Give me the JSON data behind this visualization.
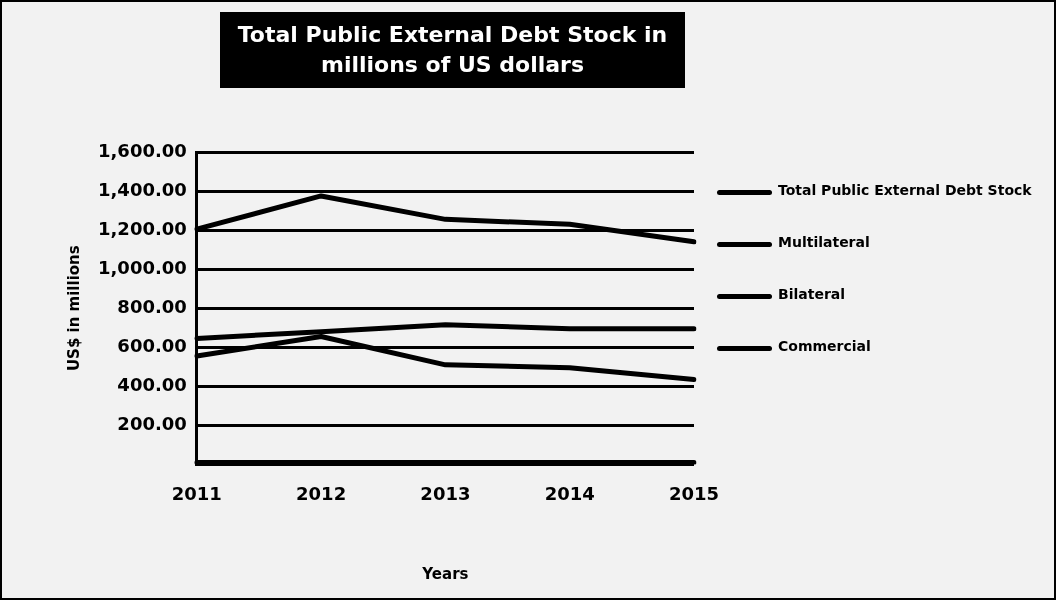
{
  "chart_data": {
    "type": "line",
    "title": "Total Public External Debt Stock in millions of US dollars",
    "xlabel": "Years",
    "ylabel": "US$ in millions",
    "categories": [
      "2011",
      "2012",
      "2013",
      "2014",
      "2015"
    ],
    "series": [
      {
        "name": "Total Public External Debt Stock",
        "color": "#000000",
        "values": [
          1205,
          1375,
          1255,
          1230,
          1140
        ]
      },
      {
        "name": "Multilateral",
        "color": "#000000",
        "values": [
          645,
          680,
          715,
          695,
          695
        ]
      },
      {
        "name": "Bilateral",
        "color": "#000000",
        "values": [
          555,
          655,
          510,
          495,
          435
        ]
      },
      {
        "name": "Commercial",
        "color": "#000000",
        "values": [
          10,
          10,
          10,
          10,
          10
        ]
      }
    ],
    "ylim": [
      0,
      1600
    ],
    "yticks": [
      {
        "value": 0,
        "label": null
      },
      {
        "value": 200,
        "label": "200.00"
      },
      {
        "value": 400,
        "label": "400.00"
      },
      {
        "value": 600,
        "label": "600.00"
      },
      {
        "value": 800,
        "label": "800.00"
      },
      {
        "value": 1000,
        "label": "1,000.00"
      },
      {
        "value": 1200,
        "label": "1,200.00"
      },
      {
        "value": 1400,
        "label": "1,400.00"
      },
      {
        "value": 1600,
        "label": "1,600.00"
      }
    ],
    "grid": "y",
    "legend": "right",
    "marker": "none",
    "line_style": "solid"
  }
}
